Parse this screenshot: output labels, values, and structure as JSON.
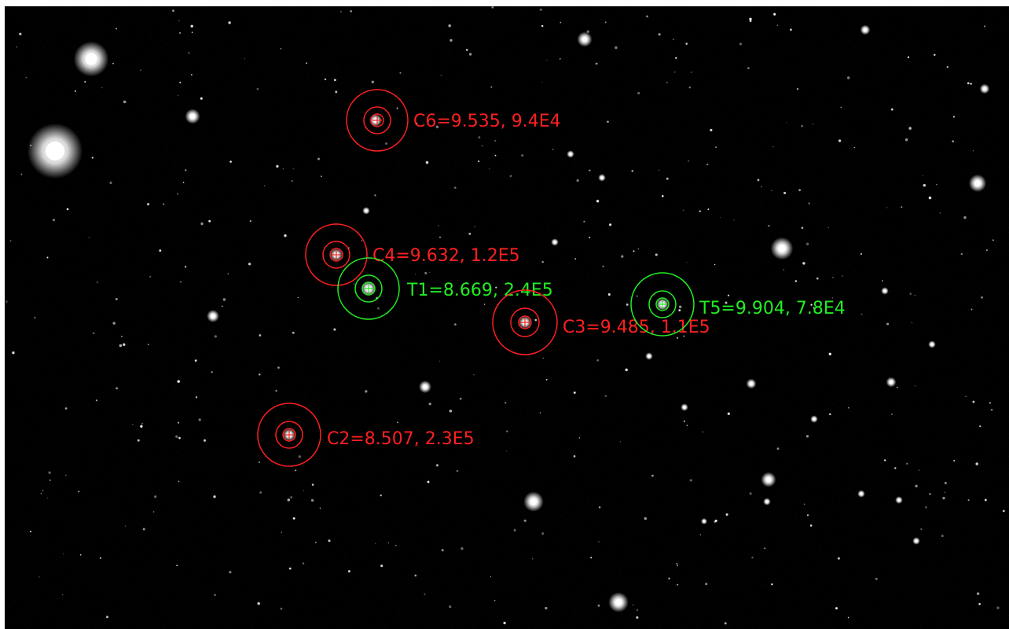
{
  "image": {
    "background": "#000000",
    "aperture_colors": {
      "comparison": "#ff2020",
      "target": "#22ee22"
    }
  },
  "apertures": [
    {
      "id": "C6",
      "kind": "comparison",
      "label": "C6=9.535, 9.4E4"
    },
    {
      "id": "C4",
      "kind": "comparison",
      "label": "C4=9.632, 1.2E5"
    },
    {
      "id": "T1",
      "kind": "target",
      "label": "T1=8.669, 2.4E5"
    },
    {
      "id": "C3",
      "kind": "comparison",
      "label": "C3=9.485, 1.1E5"
    },
    {
      "id": "T5",
      "kind": "target",
      "label": "T5=9.904, 7.8E4"
    },
    {
      "id": "C2",
      "kind": "comparison",
      "label": "C2=8.507, 2.3E5"
    }
  ]
}
